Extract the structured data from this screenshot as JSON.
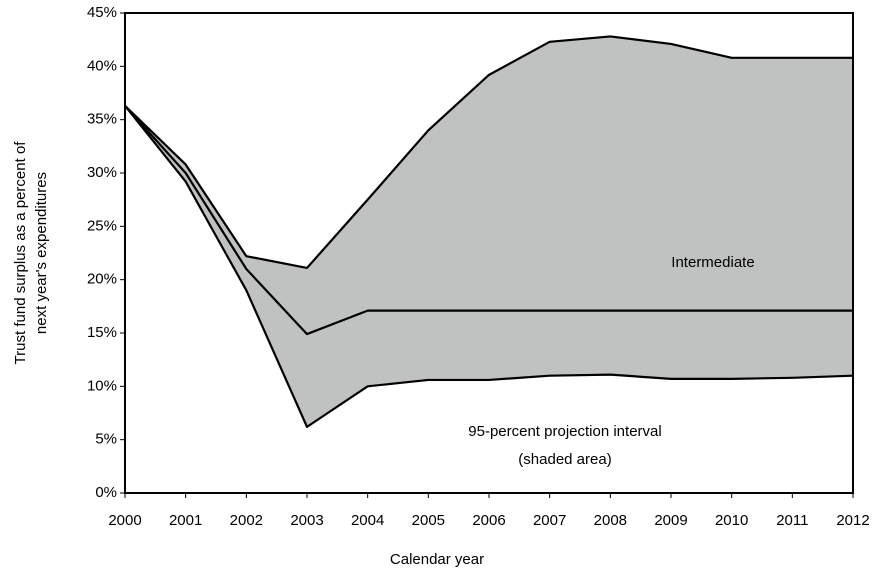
{
  "chart_data": {
    "type": "line",
    "x_label": "Calendar year",
    "y_label": [
      "Trust fund surplus as a percent of",
      "next year's expenditures"
    ],
    "annotations": [
      "Intermediate",
      "95-percent projection interval",
      "(shaded area)"
    ],
    "x": [
      2000,
      2001,
      2002,
      2003,
      2004,
      2005,
      2006,
      2007,
      2008,
      2009,
      2010,
      2011,
      2012
    ],
    "series": [
      {
        "color": "#000000",
        "values": [
          36.3,
          30.8,
          22.2,
          21.1,
          27.5,
          34.0,
          39.2,
          42.3,
          42.8,
          42.1,
          40.8,
          40.8,
          40.8
        ]
      },
      {
        "color": "#000000",
        "values": [
          36.3,
          30.0,
          21.0,
          14.9,
          17.1,
          17.1,
          17.1,
          17.1,
          17.1,
          17.1,
          17.1,
          17.1,
          17.1
        ]
      },
      {
        "color": "#000000",
        "values": [
          36.3,
          29.2,
          19.0,
          6.2,
          10.0,
          10.6,
          10.6,
          11.0,
          11.1,
          10.7,
          10.7,
          10.8,
          11.0
        ]
      }
    ],
    "shade_color": "#c0c2c2",
    "xlim": [
      2000,
      2012
    ],
    "xticks": [
      2000,
      2001,
      2002,
      2003,
      2004,
      2005,
      2006,
      2007,
      2008,
      2009,
      2010,
      2011,
      2012
    ],
    "ylim": [
      0,
      45
    ],
    "yticks": [
      {
        "value": 0,
        "label": "0%"
      },
      {
        "value": 5,
        "label": "5%"
      },
      {
        "value": 10,
        "label": "10%"
      },
      {
        "value": 15,
        "label": "15%"
      },
      {
        "value": 20,
        "label": "20%"
      },
      {
        "value": 25,
        "label": "25%"
      },
      {
        "value": 30,
        "label": "30%"
      },
      {
        "value": 35,
        "label": "35%"
      },
      {
        "value": 40,
        "label": "40%"
      },
      {
        "value": 45,
        "label": "45%"
      }
    ]
  }
}
